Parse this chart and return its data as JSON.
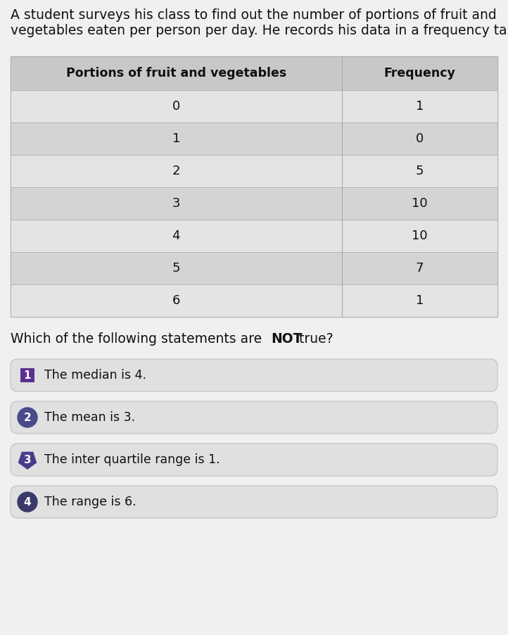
{
  "title_line1": "A student surveys his class to find out the number of portions of fruit and",
  "title_line2": "vegetables eaten per person per day. He records his data in a frequency table:",
  "col1_header": "Portions of fruit and vegetables",
  "col2_header": "Frequency",
  "portions": [
    "0",
    "1",
    "2",
    "3",
    "4",
    "5",
    "6"
  ],
  "frequencies": [
    "1",
    "0",
    "5",
    "10",
    "10",
    "7",
    "1"
  ],
  "question_pre": "Which of the following statements are ",
  "question_bold": "NOT",
  "question_post": " true?",
  "options": [
    "The median is 4.",
    "The mean is 3.",
    "The inter quartile range is 1.",
    "The range is 6."
  ],
  "option_numbers": [
    "1",
    "2",
    "3",
    "4"
  ],
  "badge_colors": [
    "#5b3090",
    "#4a4a8a",
    "#4a3a8a",
    "#3a3a6a"
  ],
  "bg_color": "#f0f0f0",
  "page_bg": "#f0f0f0",
  "table_outer_bg": "#d8d8d8",
  "table_header_bg": "#c8c8c8",
  "table_row_bg_light": "#e4e4e4",
  "table_row_bg_dark": "#d4d4d4",
  "option_bg": "#e0e0e0",
  "title_fontsize": 13.5,
  "table_header_fontsize": 12.5,
  "table_data_fontsize": 13,
  "question_fontsize": 13.5,
  "option_fontsize": 12.5,
  "badge_fontsize": 11
}
